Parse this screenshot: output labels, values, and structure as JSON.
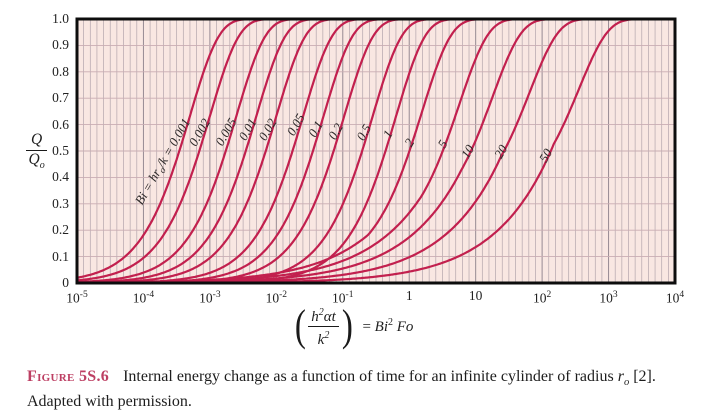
{
  "figure": {
    "tag": "Figure",
    "number": "5S.6",
    "body_1": "Internal energy change as a function of time for an infinite cylinder of radius ",
    "r_base": "r",
    "r_sub": "o",
    "body_2": " [2]. Adapted with permission."
  },
  "colors": {
    "curve": "#c2204e",
    "plot_bg": "#f9e7e2",
    "grid_minor": "#b3a5ac",
    "grid_major": "#978a93",
    "grid_horizontal": "#c9adb3",
    "frame": "#0d0d0d",
    "caption_accent": "#bd3f63",
    "curve_label_text": "#2e2a2a"
  },
  "y_axis": {
    "ticks": [
      "1.0",
      "0.9",
      "0.8",
      "0.7",
      "0.6",
      "0.5",
      "0.4",
      "0.3",
      "0.2",
      "0.1",
      "0"
    ],
    "label_num": "Q",
    "label_den_base": "Q",
    "label_den_sub": "o"
  },
  "x_axis": {
    "ticks": [
      {
        "b": "10",
        "e": "-5"
      },
      {
        "b": "10",
        "e": "-4"
      },
      {
        "b": "10",
        "e": "-3"
      },
      {
        "b": "10",
        "e": "-2"
      },
      {
        "b": "10",
        "e": "-1"
      },
      {
        "b": "1"
      },
      {
        "b": "10"
      },
      {
        "b": "10",
        "e": "2"
      },
      {
        "b": "10",
        "e": "3"
      },
      {
        "b": "10",
        "e": "4"
      }
    ]
  },
  "equation": {
    "lparen": "(",
    "num_base": "h",
    "num_sup": "2",
    "num_rest": "αt",
    "den_base": "k",
    "den_sup": "2",
    "rparen": ")",
    "equals": "=",
    "rhs_base": "Bi",
    "rhs_sup": "2",
    "rhs_tail": "Fo"
  },
  "chart_data": {
    "type": "line",
    "xscale": "log",
    "xlim": [
      1e-05,
      10000.0
    ],
    "ylim": [
      0,
      1
    ],
    "x_decades": 9,
    "grid": {
      "x_minor_per_decade": 10,
      "y_step": 0.1
    },
    "xlabel": "(h^2 α t / k^2) = Bi^2 Fo",
    "ylabel": "Q/Q_o",
    "legend_position": "labels-along-curves",
    "model_note": "Q/Qo = 1 - B*exp(-x/tau) with sqrt tail below xc; x = Bi^2*Fo",
    "curves": [
      {
        "label_pre": "Bi = hr",
        "label_sub": "o",
        "label_post": "/k = 0.001",
        "bi": 0.001,
        "tau": 0.0005,
        "B": 1,
        "xc": 0,
        "x_half": 0.00035
      },
      {
        "label": "0.002",
        "bi": 0.002,
        "tau": 0.001,
        "B": 1,
        "xc": 0,
        "x_half": 0.00069
      },
      {
        "label": "0.005",
        "bi": 0.005,
        "tau": 0.0025,
        "B": 1,
        "xc": 0,
        "x_half": 0.0017
      },
      {
        "label": "0.01",
        "bi": 0.01,
        "tau": 0.005,
        "B": 1,
        "xc": 0,
        "x_half": 0.0035
      },
      {
        "label": "0.02",
        "bi": 0.02,
        "tau": 0.01,
        "B": 1,
        "xc": 0,
        "x_half": 0.007
      },
      {
        "label": "0.05",
        "bi": 0.05,
        "tau": 0.0253,
        "B": 1,
        "xc": 0,
        "x_half": 0.0175
      },
      {
        "label": "0.1",
        "bi": 0.1,
        "tau": 0.0513,
        "B": 1,
        "xc": 0,
        "x_half": 0.036
      },
      {
        "label": "0.2",
        "bi": 0.2,
        "tau": 0.105,
        "B": 1,
        "xc": 0,
        "x_half": 0.073
      },
      {
        "label": "0.5",
        "bi": 0.5,
        "tau": 0.282,
        "B": 1,
        "xc": 0,
        "x_half": 0.196
      },
      {
        "label": "1",
        "bi": 1,
        "tau": 0.634,
        "B": 1,
        "xc": 0,
        "x_half": 0.44
      },
      {
        "label": "2",
        "bi": 2,
        "tau": 1.56,
        "B": 0.954,
        "xc": 0.24,
        "x_half": 1.0
      },
      {
        "label": "5",
        "bi": 5,
        "tau": 5.68,
        "B": 0.878,
        "xc": 1.5,
        "x_half": 3.2
      },
      {
        "label": "10",
        "bi": 10,
        "tau": 17.9,
        "B": 0.804,
        "xc": 6.0,
        "x_half": 8.5
      },
      {
        "label": "20",
        "bi": 20,
        "tau": 65.0,
        "B": 0.754,
        "xc": 24.0,
        "x_half": 26.7
      },
      {
        "label": "50",
        "bi": 50,
        "tau": 360.0,
        "B": 0.718,
        "xc": 150.0,
        "x_half": 130.0
      }
    ]
  }
}
